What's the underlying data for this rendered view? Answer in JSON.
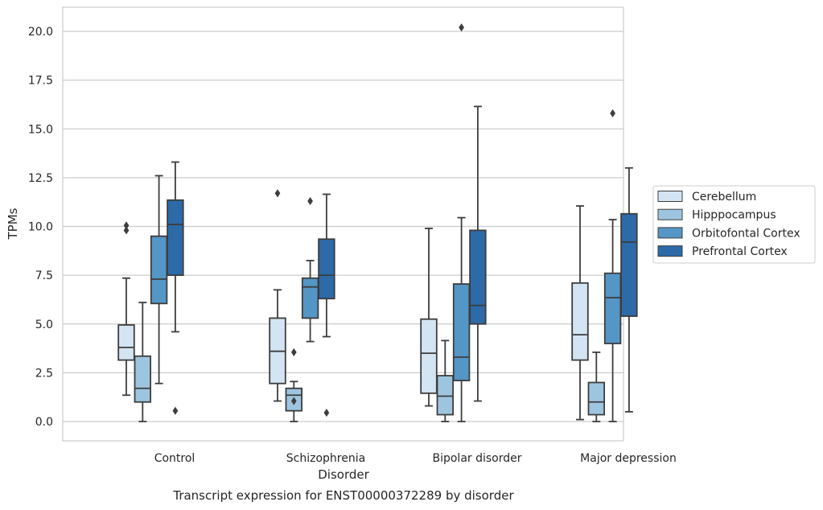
{
  "chart_data": {
    "type": "boxplot",
    "caption": "Transcript expression for ENST00000372289 by disorder",
    "xlabel": "Disorder",
    "ylabel": "TPMs",
    "ylim": [
      -1.0,
      21.2
    ],
    "yticks": [
      0.0,
      2.5,
      5.0,
      7.5,
      10.0,
      12.5,
      15.0,
      17.5,
      20.0
    ],
    "ytick_labels": [
      "0.0",
      "2.5",
      "5.0",
      "7.5",
      "10.0",
      "12.5",
      "15.0",
      "17.5",
      "20.0"
    ],
    "grid": "horizontal",
    "legend_position": "right, outside plot",
    "categories": [
      "Control",
      "Schizophrenia",
      "Bipolar disorder",
      "Major depression"
    ],
    "series": [
      {
        "name": "Cerebellum",
        "color": "#d3e4f3",
        "boxes": [
          {
            "whislo": 1.35,
            "q1": 3.15,
            "med": 3.8,
            "q3": 4.95,
            "whishi": 7.35,
            "fliers": [
              9.8,
              10.05
            ]
          },
          {
            "whislo": 1.05,
            "q1": 1.95,
            "med": 3.6,
            "q3": 5.3,
            "whishi": 6.75,
            "fliers": [
              11.7
            ]
          },
          {
            "whislo": 0.8,
            "q1": 1.45,
            "med": 3.5,
            "q3": 5.25,
            "whishi": 9.9,
            "fliers": []
          },
          {
            "whislo": 0.1,
            "q1": 3.15,
            "med": 4.45,
            "q3": 7.1,
            "whishi": 11.05,
            "fliers": []
          }
        ]
      },
      {
        "name": "Hipppocampus",
        "color": "#9ec5e0",
        "boxes": [
          {
            "whislo": 0.0,
            "q1": 1.0,
            "med": 1.7,
            "q3": 3.35,
            "whishi": 6.1,
            "fliers": []
          },
          {
            "whislo": 0.0,
            "q1": 0.55,
            "med": 1.35,
            "q3": 1.7,
            "whishi": 2.05,
            "fliers": [
              3.55,
              1.05
            ]
          },
          {
            "whislo": 0.0,
            "q1": 0.35,
            "med": 1.3,
            "q3": 2.35,
            "whishi": 4.15,
            "fliers": []
          },
          {
            "whislo": 0.0,
            "q1": 0.35,
            "med": 1.0,
            "q3": 2.0,
            "whishi": 3.55,
            "fliers": []
          }
        ]
      },
      {
        "name": "Orbitofontal Cortex",
        "color": "#5496c6",
        "boxes": [
          {
            "whislo": 1.95,
            "q1": 6.05,
            "med": 7.3,
            "q3": 9.5,
            "whishi": 12.6,
            "fliers": []
          },
          {
            "whislo": 4.1,
            "q1": 5.3,
            "med": 6.9,
            "q3": 7.35,
            "whishi": 8.25,
            "fliers": [
              11.3
            ]
          },
          {
            "whislo": 0.0,
            "q1": 2.1,
            "med": 3.3,
            "q3": 7.05,
            "whishi": 10.45,
            "fliers": [
              20.2
            ]
          },
          {
            "whislo": 0.0,
            "q1": 4.0,
            "med": 6.35,
            "q3": 7.6,
            "whishi": 10.35,
            "fliers": [
              15.8
            ]
          }
        ]
      },
      {
        "name": "Prefrontal Cortex",
        "color": "#2c6aa8",
        "boxes": [
          {
            "whislo": 4.6,
            "q1": 7.5,
            "med": 10.1,
            "q3": 11.35,
            "whishi": 13.3,
            "fliers": [
              0.55
            ]
          },
          {
            "whislo": 4.35,
            "q1": 6.3,
            "med": 7.5,
            "q3": 9.35,
            "whishi": 11.65,
            "fliers": [
              0.45
            ]
          },
          {
            "whislo": 1.05,
            "q1": 5.0,
            "med": 5.95,
            "q3": 9.8,
            "whishi": 16.15,
            "fliers": []
          },
          {
            "whislo": 0.5,
            "q1": 5.4,
            "med": 9.2,
            "q3": 10.65,
            "whishi": 13.0,
            "fliers": []
          }
        ]
      }
    ]
  }
}
